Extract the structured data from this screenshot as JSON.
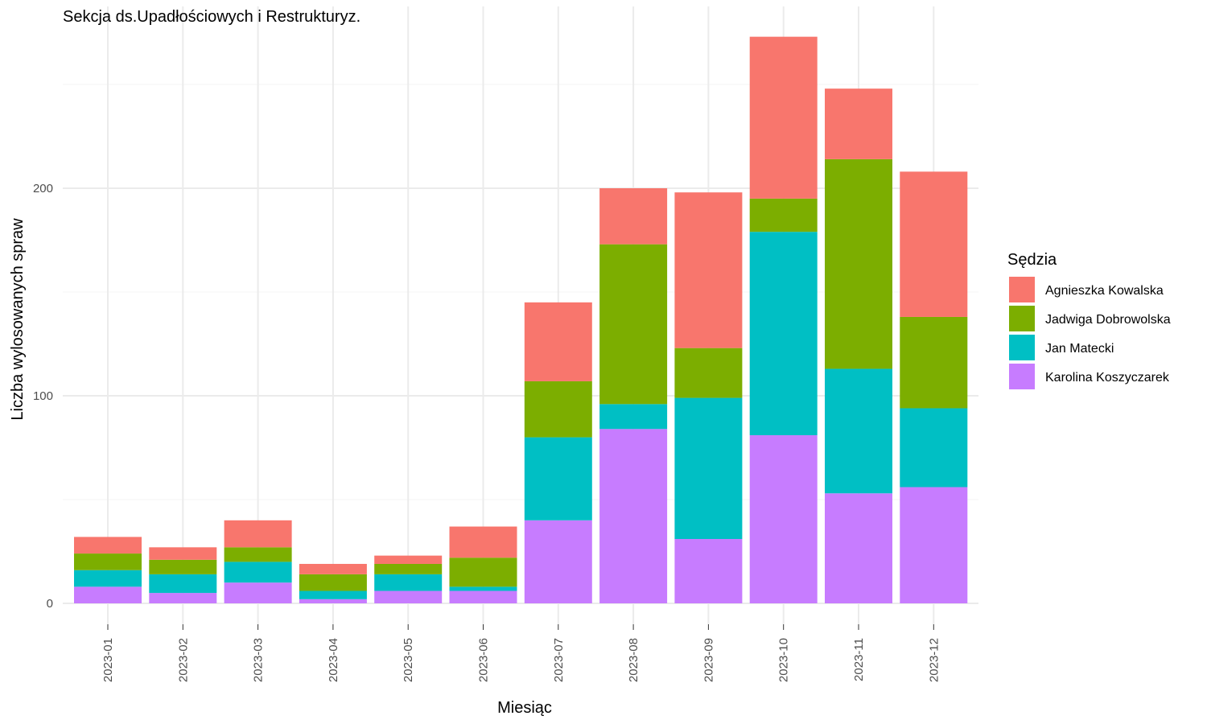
{
  "chart_data": {
    "type": "bar",
    "stacked": true,
    "title": "Sekcja ds.Upadłościowych i Restrukturyz.",
    "xlabel": "Miesiąc",
    "ylabel": "Liczba wylosowanych spraw",
    "ylim": [
      0,
      275
    ],
    "yticks": [
      0,
      100,
      200
    ],
    "grid": true,
    "legend": {
      "title": "Sędzia",
      "position": "right"
    },
    "categories": [
      "2023-01",
      "2023-02",
      "2023-03",
      "2023-04",
      "2023-05",
      "2023-06",
      "2023-07",
      "2023-08",
      "2023-09",
      "2023-10",
      "2023-11",
      "2023-12"
    ],
    "series": [
      {
        "name": "Karolina Koszyczarek",
        "color": "#C77CFF",
        "values": [
          8,
          5,
          10,
          2,
          6,
          6,
          40,
          84,
          31,
          81,
          53,
          56
        ]
      },
      {
        "name": "Jan Matecki",
        "color": "#00BFC4",
        "values": [
          8,
          9,
          10,
          4,
          8,
          2,
          40,
          12,
          68,
          98,
          60,
          38
        ]
      },
      {
        "name": "Jadwiga Dobrowolska",
        "color": "#7CAE00",
        "values": [
          8,
          7,
          7,
          8,
          5,
          14,
          27,
          77,
          24,
          16,
          101,
          44
        ]
      },
      {
        "name": "Agnieszka Kowalska",
        "color": "#F8766D",
        "values": [
          8,
          6,
          13,
          5,
          4,
          15,
          38,
          27,
          75,
          78,
          34,
          70
        ]
      }
    ]
  }
}
